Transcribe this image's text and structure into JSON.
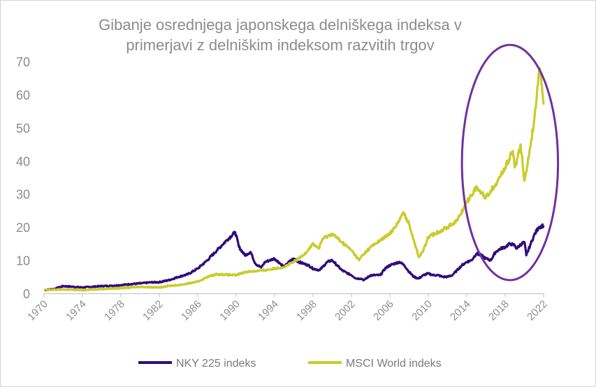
{
  "chart_data": {
    "type": "line",
    "title": "Gibanje osrednjega japonskega delniškega indeksa v primerjavi z delniškim indeksom razvitih trgov",
    "title_lines": [
      "Gibanje osrednjega japonskega delniškega indeksa v",
      "primerjavi z delniškim indeksom razvitih trgov"
    ],
    "xlabel": "",
    "ylabel": "",
    "xlim": [
      1970,
      2022
    ],
    "ylim": [
      0,
      70
    ],
    "x_ticks": [
      "1970",
      "1974",
      "1978",
      "1982",
      "1986",
      "1990",
      "1994",
      "1998",
      "2002",
      "2006",
      "2010",
      "2014",
      "2018",
      "2022"
    ],
    "y_ticks": [
      "0",
      "10",
      "20",
      "30",
      "40",
      "50",
      "60",
      "70"
    ],
    "grid": false,
    "legend_position": "bottom",
    "highlight": {
      "shape": "ellipse",
      "color": "#7030a0",
      "x_range": [
        2013.5,
        2023.5
      ],
      "y_range": [
        4,
        75
      ]
    },
    "series": [
      {
        "name": "NKY 225 indeks",
        "color": "#2e0d7a",
        "x": [
          1970,
          1971,
          1972,
          1973,
          1974,
          1975,
          1976,
          1977,
          1978,
          1979,
          1980,
          1981,
          1982,
          1983,
          1984,
          1985,
          1986,
          1987,
          1988,
          1988.5,
          1989,
          1989.9,
          1990.3,
          1990.9,
          1991.5,
          1992,
          1992.6,
          1993,
          1993.5,
          1994,
          1994.6,
          1995,
          1995.5,
          1996,
          1996.5,
          1997,
          1997.5,
          1998,
          1998.7,
          1999,
          1999.5,
          2000,
          2000.5,
          2001,
          2001.5,
          2002,
          2002.5,
          2003,
          2003.3,
          2004,
          2005,
          2005.5,
          2006,
          2006.5,
          2007,
          2007.5,
          2008,
          2008.5,
          2009,
          2009.5,
          2010,
          2010.5,
          2011,
          2011.5,
          2012,
          2012.5,
          2013,
          2013.5,
          2014,
          2014.5,
          2015,
          2015.5,
          2016,
          2016.5,
          2017,
          2017.5,
          2018,
          2018.5,
          2019,
          2019.2,
          2019.5,
          2020,
          2020.2,
          2020.6,
          2021,
          2021.5,
          2022
        ],
        "values": [
          1.0,
          1.3,
          2.2,
          2.0,
          1.8,
          2.0,
          2.2,
          2.3,
          2.5,
          2.8,
          3.0,
          3.3,
          3.4,
          4.0,
          5.0,
          5.8,
          7.5,
          10.0,
          13.0,
          14.5,
          16.0,
          18.5,
          14.0,
          11.5,
          12.5,
          9.0,
          7.8,
          9.5,
          10.0,
          10.5,
          9.0,
          8.0,
          9.5,
          10.5,
          9.5,
          9.0,
          8.5,
          7.5,
          7.0,
          8.0,
          9.5,
          10.0,
          8.5,
          7.0,
          6.2,
          5.5,
          4.5,
          4.5,
          4.0,
          5.5,
          5.5,
          7.5,
          8.5,
          9.0,
          9.5,
          8.5,
          6.5,
          5.0,
          4.5,
          5.5,
          6.0,
          5.5,
          5.5,
          5.0,
          5.0,
          5.5,
          7.0,
          8.5,
          9.5,
          10.0,
          12.0,
          11.5,
          10.5,
          10.0,
          12.5,
          13.5,
          14.0,
          15.0,
          14.5,
          13.5,
          14.5,
          15.5,
          11.5,
          14.5,
          17.5,
          20.0,
          20.5
        ]
      },
      {
        "name": "MSCI World indeks",
        "color": "#c9cc2c",
        "x": [
          1970,
          1972,
          1974,
          1975,
          1978,
          1980,
          1982,
          1983,
          1984,
          1986,
          1987,
          1988,
          1990,
          1991,
          1993,
          1995,
          1996,
          1997,
          1998,
          1998.6,
          1999,
          2000,
          2001,
          2002,
          2002.8,
          2003,
          2004,
          2005,
          2006,
          2007,
          2007.4,
          2008,
          2008.5,
          2009,
          2009.5,
          2010,
          2011,
          2012,
          2013,
          2014,
          2015,
          2016,
          2017,
          2018,
          2018.8,
          2019,
          2019.3,
          2019.6,
          2020,
          2020.5,
          2021,
          2021.3,
          2021.6,
          2022
        ],
        "values": [
          1.0,
          1.2,
          1.0,
          1.2,
          1.6,
          2.0,
          1.8,
          2.3,
          2.5,
          3.5,
          5.0,
          5.8,
          5.5,
          6.5,
          7.0,
          8.0,
          9.5,
          11.5,
          15.0,
          13.5,
          16.5,
          18.0,
          15.5,
          13.0,
          10.0,
          11.0,
          14.0,
          16.0,
          18.0,
          22.0,
          24.5,
          21.0,
          16.0,
          11.0,
          13.0,
          17.0,
          18.5,
          20.0,
          22.0,
          27.5,
          32.0,
          29.0,
          33.0,
          38.0,
          43.0,
          38.0,
          41.0,
          45.0,
          34.0,
          42.0,
          52.0,
          60.0,
          68.0,
          57.0
        ]
      }
    ]
  }
}
